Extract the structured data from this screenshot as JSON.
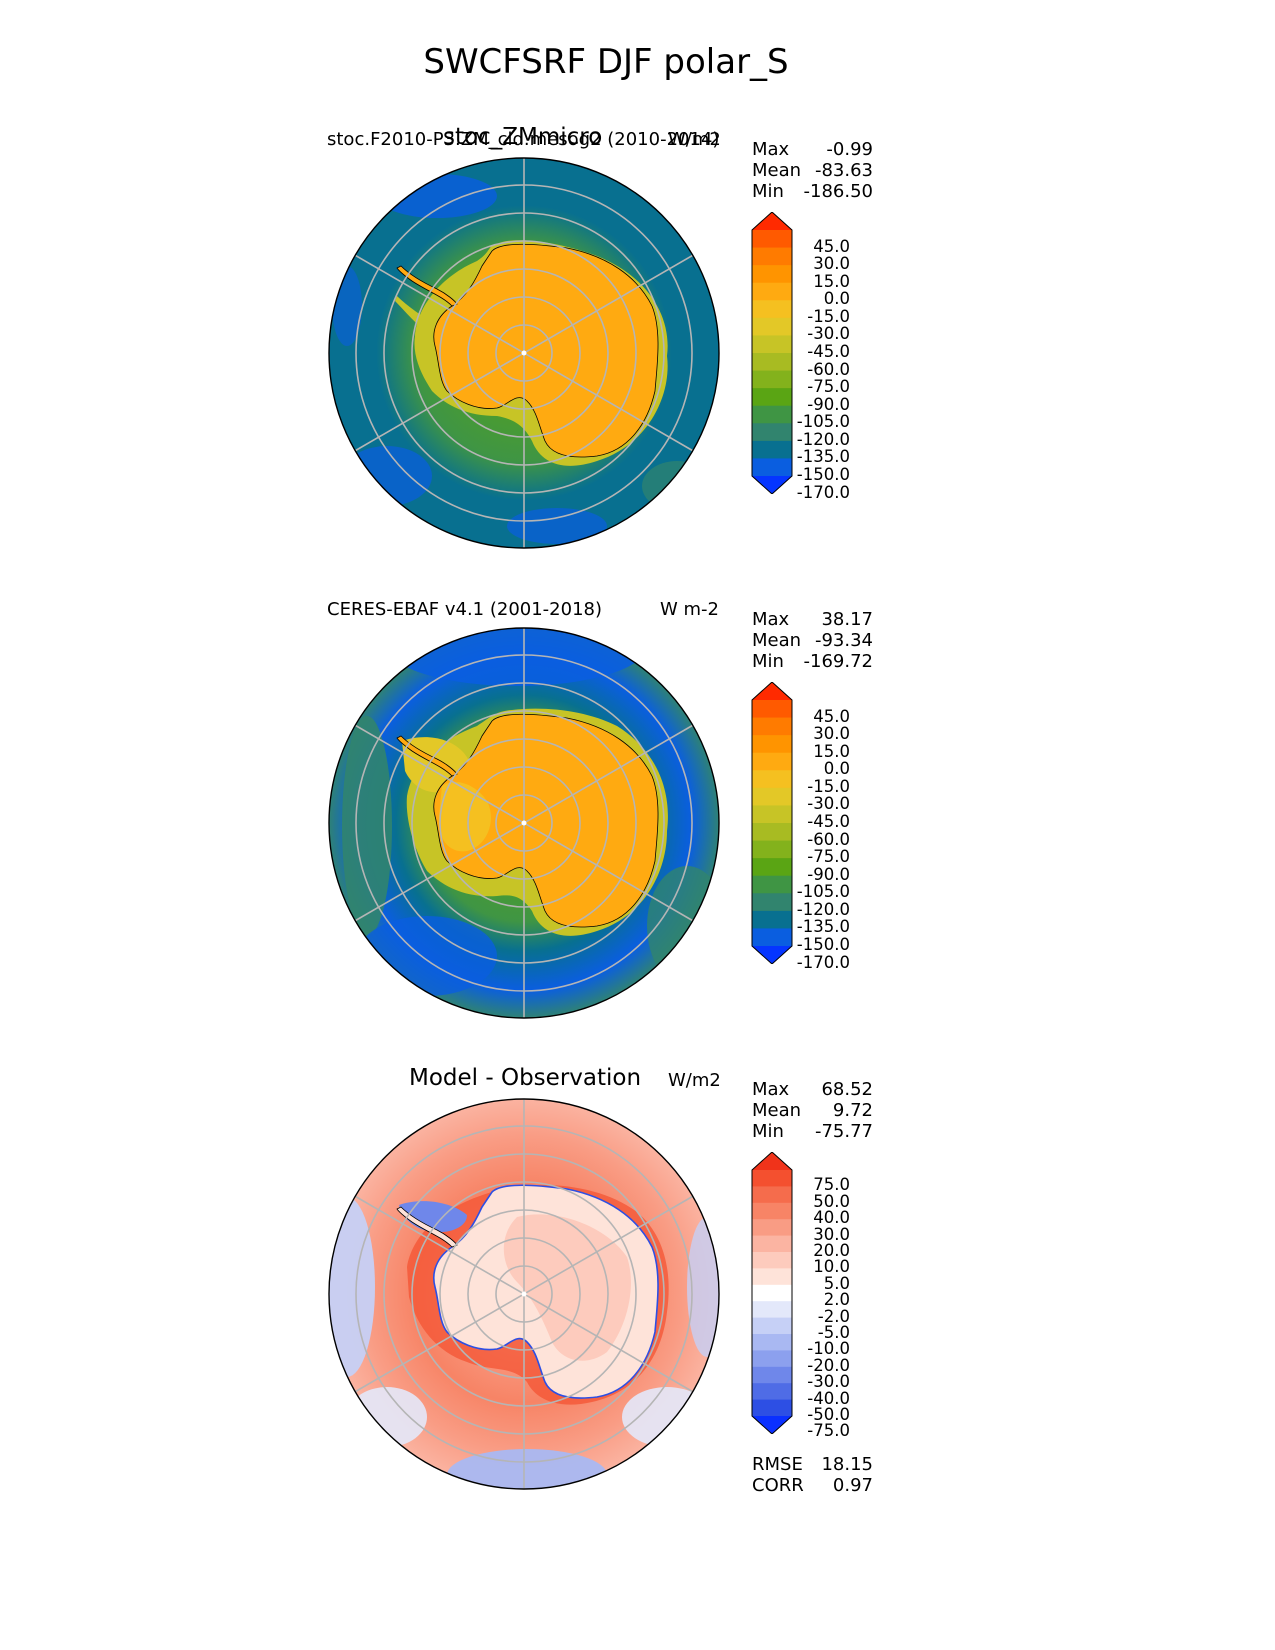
{
  "figure": {
    "title": "SWCFSRF DJF polar_S"
  },
  "chart_data": [
    {
      "type": "heatmap",
      "projection": "south-polar-stereographic",
      "title": "stoc_ZMmicro",
      "left_label": "stoc.F2010-P3.ZM_cld.mesog2 (2010-2014)",
      "units": "W/m2",
      "stats": [
        {
          "label": "Max",
          "value": "-0.99"
        },
        {
          "label": "Mean",
          "value": "-83.63"
        },
        {
          "label": "Min",
          "value": "-186.50"
        }
      ],
      "colorbar": {
        "ticks": [
          "45.0",
          "30.0",
          "15.0",
          "0.0",
          "-15.0",
          "-30.0",
          "-45.0",
          "-60.0",
          "-75.0",
          "-90.0",
          "-105.0",
          "-120.0",
          "-135.0",
          "-150.0",
          "-170.0"
        ],
        "colors": [
          "#ff2a00",
          "#ff5a00",
          "#ff7b00",
          "#ff9400",
          "#ffaa11",
          "#f5c020",
          "#e3c827",
          "#c7c426",
          "#a8bb22",
          "#83b21c",
          "#5aa514",
          "#3f9544",
          "#31846e",
          "#087090",
          "#0a5ee0",
          "#0535ff"
        ]
      }
    },
    {
      "type": "heatmap",
      "projection": "south-polar-stereographic",
      "left_label": "CERES-EBAF v4.1 (2001-2018)",
      "units": "W m-2",
      "stats": [
        {
          "label": "Max",
          "value": "38.17"
        },
        {
          "label": "Mean",
          "value": "-93.34"
        },
        {
          "label": "Min",
          "value": "-169.72"
        }
      ],
      "colorbar": {
        "ticks": [
          "45.0",
          "30.0",
          "15.0",
          "0.0",
          "-15.0",
          "-30.0",
          "-45.0",
          "-60.0",
          "-75.0",
          "-90.0",
          "-105.0",
          "-120.0",
          "-135.0",
          "-150.0",
          "-170.0"
        ],
        "colors": [
          "#ff2a00",
          "#ff5a00",
          "#ff7b00",
          "#ff9400",
          "#ffaa11",
          "#f5c020",
          "#e3c827",
          "#c7c426",
          "#a8bb22",
          "#83b21c",
          "#5aa514",
          "#3f9544",
          "#31846e",
          "#087090",
          "#0a5ee0",
          "#0535ff"
        ]
      }
    },
    {
      "type": "heatmap",
      "projection": "south-polar-stereographic",
      "title": "Model - Observation",
      "units": "W/m2",
      "stats": [
        {
          "label": "Max",
          "value": "68.52"
        },
        {
          "label": "Mean",
          "value": "9.72"
        },
        {
          "label": "Min",
          "value": "-75.77"
        }
      ],
      "extra_stats": [
        {
          "label": "RMSE",
          "value": "18.15"
        },
        {
          "label": "CORR",
          "value": "0.97"
        }
      ],
      "colorbar": {
        "ticks": [
          "75.0",
          "50.0",
          "40.0",
          "30.0",
          "20.0",
          "10.0",
          "5.0",
          "2.0",
          "-2.0",
          "-5.0",
          "-10.0",
          "-20.0",
          "-30.0",
          "-40.0",
          "-50.0",
          "-75.0"
        ],
        "colors": [
          "#f0331a",
          "#f4502f",
          "#f56c4c",
          "#f78466",
          "#f99c84",
          "#fbb4a2",
          "#fdcbbd",
          "#fee3d9",
          "#ffffff",
          "#e3e8fa",
          "#c6d0f6",
          "#a9b8f2",
          "#8ca0ee",
          "#6f87ea",
          "#4f6ce6",
          "#2d4fe4",
          "#0a30ff"
        ]
      }
    }
  ]
}
